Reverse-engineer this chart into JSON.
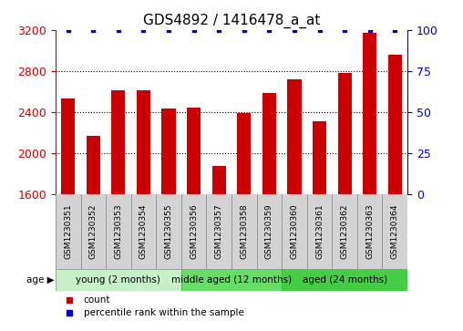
{
  "title": "GDS4892 / 1416478_a_at",
  "samples": [
    "GSM1230351",
    "GSM1230352",
    "GSM1230353",
    "GSM1230354",
    "GSM1230355",
    "GSM1230356",
    "GSM1230357",
    "GSM1230358",
    "GSM1230359",
    "GSM1230360",
    "GSM1230361",
    "GSM1230362",
    "GSM1230363",
    "GSM1230364"
  ],
  "counts": [
    2530,
    2170,
    2610,
    2610,
    2430,
    2440,
    1870,
    2390,
    2580,
    2720,
    2310,
    2780,
    3170,
    2960
  ],
  "percentile_ranks": [
    100,
    100,
    100,
    100,
    100,
    100,
    100,
    100,
    100,
    100,
    100,
    100,
    100,
    100
  ],
  "bar_color": "#cc0000",
  "dot_color": "#0000cc",
  "ylim_left": [
    1600,
    3200
  ],
  "ylim_right": [
    0,
    100
  ],
  "yticks_left": [
    1600,
    2000,
    2400,
    2800,
    3200
  ],
  "yticks_right": [
    0,
    25,
    50,
    75,
    100
  ],
  "groups": [
    {
      "label": "young (2 months)",
      "start": 0,
      "end": 5,
      "color": "#c8f0c8"
    },
    {
      "label": "middle aged (12 months)",
      "start": 5,
      "end": 9,
      "color": "#66dd66"
    },
    {
      "label": "aged (24 months)",
      "start": 9,
      "end": 14,
      "color": "#44cc44"
    }
  ],
  "age_label": "age",
  "legend_count_label": "count",
  "legend_pct_label": "percentile rank within the sample",
  "background_color": "#ffffff",
  "tick_area_color": "#d3d3d3",
  "grid_color": "#000000",
  "title_fontsize": 11,
  "axis_fontsize": 9,
  "tick_fontsize": 6.5,
  "label_fontsize": 7.5
}
